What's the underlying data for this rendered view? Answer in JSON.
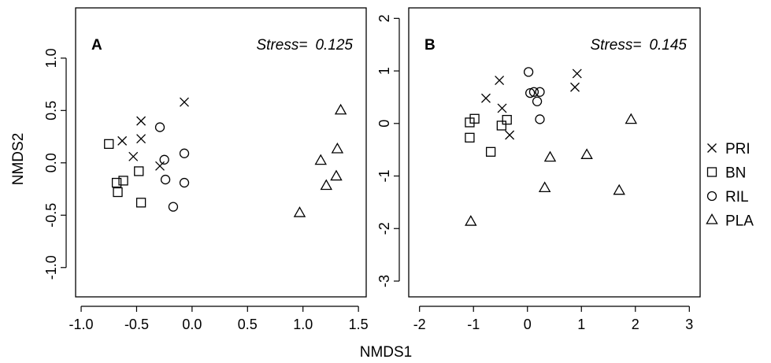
{
  "xlabel": "NMDS1",
  "ylabel": "NMDS2",
  "legend": {
    "position": "right",
    "items": [
      {
        "label": "PRI",
        "marker": "cross"
      },
      {
        "label": "BN",
        "marker": "square"
      },
      {
        "label": "RIL",
        "marker": "circle"
      },
      {
        "label": "PLA",
        "marker": "triangle"
      }
    ]
  },
  "chart_data": [
    {
      "type": "scatter",
      "panel_label": "A",
      "stress_label": "Stress=",
      "stress_value": "0.125",
      "xlabel": "NMDS1",
      "ylabel": "NMDS2",
      "xlim": [
        -1.05,
        1.57
      ],
      "ylim": [
        -1.28,
        1.48
      ],
      "xticks": [
        -1.0,
        -0.5,
        0.0,
        0.5,
        1.0,
        1.5
      ],
      "xtick_labels": [
        "-1.0",
        "-0.5",
        "0.0",
        "0.5",
        "1.0",
        "1.5"
      ],
      "yticks": [
        -1.0,
        -0.5,
        0.0,
        0.5,
        1.0
      ],
      "ytick_labels": [
        "-1.0",
        "-0.5",
        "0.0",
        "0.5",
        "1.0"
      ],
      "series": [
        {
          "name": "PRI",
          "marker": "cross",
          "points": [
            [
              -0.07,
              0.58
            ],
            [
              -0.46,
              0.4
            ],
            [
              -0.46,
              0.23
            ],
            [
              -0.63,
              0.21
            ],
            [
              -0.53,
              0.06
            ],
            [
              -0.29,
              -0.03
            ]
          ]
        },
        {
          "name": "BN",
          "marker": "square",
          "points": [
            [
              -0.75,
              0.18
            ],
            [
              -0.48,
              -0.08
            ],
            [
              -0.62,
              -0.17
            ],
            [
              -0.68,
              -0.19
            ],
            [
              -0.67,
              -0.28
            ],
            [
              -0.46,
              -0.38
            ]
          ]
        },
        {
          "name": "RIL",
          "marker": "circle",
          "points": [
            [
              -0.29,
              0.34
            ],
            [
              -0.07,
              0.09
            ],
            [
              -0.25,
              0.03
            ],
            [
              -0.24,
              -0.16
            ],
            [
              -0.07,
              -0.19
            ],
            [
              -0.17,
              -0.42
            ]
          ]
        },
        {
          "name": "PLA",
          "marker": "triangle",
          "points": [
            [
              1.34,
              0.5
            ],
            [
              1.31,
              0.13
            ],
            [
              1.16,
              0.02
            ],
            [
              1.3,
              -0.13
            ],
            [
              1.21,
              -0.22
            ],
            [
              0.97,
              -0.48
            ]
          ]
        }
      ]
    },
    {
      "type": "scatter",
      "panel_label": "B",
      "stress_label": "Stress=",
      "stress_value": "0.145",
      "xlabel": "NMDS1",
      "ylabel": "",
      "xlim": [
        -2.2,
        3.2
      ],
      "ylim": [
        -3.3,
        2.2
      ],
      "xticks": [
        -2,
        -1,
        0,
        1,
        2,
        3
      ],
      "xtick_labels": [
        "-2",
        "-1",
        "0",
        "1",
        "2",
        "3"
      ],
      "yticks": [
        -3,
        -2,
        -1,
        0,
        1,
        2
      ],
      "ytick_labels": [
        "-3",
        "-2",
        "-1",
        "0",
        "1",
        "2"
      ],
      "series": [
        {
          "name": "PRI",
          "marker": "cross",
          "points": [
            [
              0.92,
              0.95
            ],
            [
              0.88,
              0.69
            ],
            [
              -0.52,
              0.82
            ],
            [
              -0.77,
              0.48
            ],
            [
              -0.47,
              0.29
            ],
            [
              -0.33,
              -0.22
            ]
          ]
        },
        {
          "name": "BN",
          "marker": "square",
          "points": [
            [
              -0.98,
              0.09
            ],
            [
              -1.07,
              0.02
            ],
            [
              -0.38,
              0.07
            ],
            [
              -0.48,
              -0.04
            ],
            [
              -1.07,
              -0.27
            ],
            [
              -0.68,
              -0.54
            ]
          ]
        },
        {
          "name": "RIL",
          "marker": "circle",
          "points": [
            [
              0.02,
              0.98
            ],
            [
              0.05,
              0.58
            ],
            [
              0.12,
              0.6
            ],
            [
              0.23,
              0.6
            ],
            [
              0.18,
              0.42
            ],
            [
              0.23,
              0.08
            ]
          ]
        },
        {
          "name": "PLA",
          "marker": "triangle",
          "points": [
            [
              1.92,
              0.07
            ],
            [
              1.1,
              -0.6
            ],
            [
              0.42,
              -0.65
            ],
            [
              0.32,
              -1.23
            ],
            [
              1.7,
              -1.28
            ],
            [
              -1.05,
              -1.87
            ]
          ]
        }
      ]
    }
  ]
}
